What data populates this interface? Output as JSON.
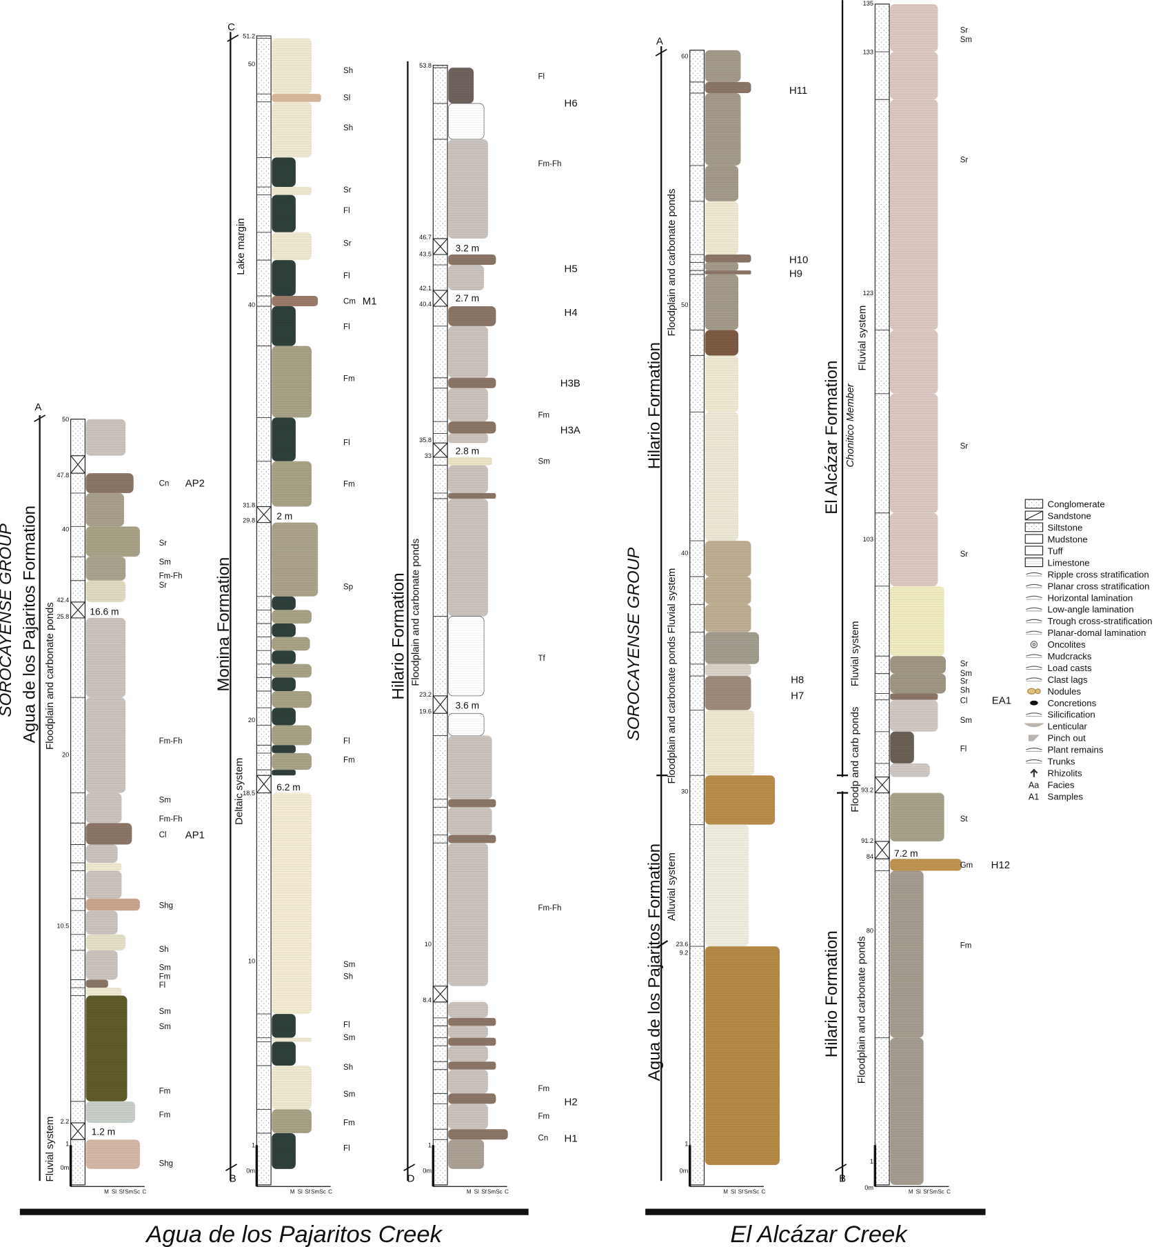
{
  "columns": [
    {
      "section_top": "A",
      "section_bottom": "",
      "facies": [
        "Cn",
        "Sr",
        "Sm",
        "Fm-Fh",
        "Sr",
        "Fm-Fh",
        "Sm",
        "Fm-Fh",
        "Cl",
        "Shg",
        "Sh",
        "Sm",
        "Fm",
        "Fl",
        "Sm",
        "Sm",
        "Fm",
        "Fm",
        "Shg"
      ],
      "samples": [
        "AP2",
        "AP1"
      ],
      "depths": [
        "50",
        "47.8",
        "40",
        "42.4",
        "25.8",
        "20",
        "10.5",
        "2.2",
        "1",
        "0m"
      ],
      "gaps": [
        "16.6 m",
        "1.2 m"
      ],
      "vertical_labels": [
        "SOROCAYENSE GROUP",
        "Agua de los Pajaritos Formation",
        "Floodplain and carbonate ponds",
        "Fluvial system"
      ]
    },
    {
      "section_top": "C",
      "section_bottom": "B",
      "facies": [
        "Sh",
        "Sl",
        "Sh",
        "Sr",
        "Fl",
        "Sr",
        "Fl",
        "Cm",
        "Fl",
        "Fm",
        "Fl",
        "Fm",
        "Sp",
        "Fl",
        "Fm",
        "Sm",
        "Sh",
        "Fl",
        "Sm",
        "Sh",
        "Sm",
        "Fm",
        "Fl"
      ],
      "samples": [
        "M1"
      ],
      "depths": [
        "51.2",
        "50",
        "40",
        "31.8",
        "29.8",
        "20",
        "18.5",
        "10",
        "1",
        "0m"
      ],
      "gaps": [
        "2 m",
        "6.2 m"
      ],
      "vertical_labels": [
        "Monina Formation",
        "Lake margin",
        "Deltaic system"
      ]
    },
    {
      "section_top": "",
      "section_bottom": "D",
      "facies": [
        "Fl",
        "Fm-Fh",
        "Fm",
        "Sm",
        "Tf",
        "Fm-Fh",
        "Fm",
        "Fm",
        "Cn"
      ],
      "samples": [
        "H6",
        "H5",
        "H4",
        "H3B",
        "H3A",
        "H2",
        "H1"
      ],
      "depths": [
        "53.8",
        "46.7",
        "43.5",
        "42.1",
        "40.4",
        "35.8",
        "33",
        "23.2",
        "19.6",
        "10",
        "8.4",
        "1",
        "0m"
      ],
      "gaps": [
        "3.2 m",
        "2.7 m",
        "2.8 m",
        "3.6 m"
      ],
      "vertical_labels": [
        "Hilario Formation",
        "Floodplain and carbonate ponds"
      ]
    },
    {
      "section_top": "A",
      "section_bottom": "",
      "facies": [],
      "samples": [
        "H11",
        "H10",
        "H9",
        "H8",
        "H7"
      ],
      "depths": [
        "60",
        "50",
        "40",
        "30",
        "23.6",
        "9.2",
        "1",
        "0m"
      ],
      "gaps": [],
      "vertical_labels": [
        "SOROCAYENSE GROUP",
        "Hilario Formation",
        "Floodplain and carbonate ponds",
        "Floodplain and carbonate ponds Fluvial system",
        "Agua de los Pajaritos Formation",
        "Alluvial system"
      ]
    },
    {
      "section_top": "",
      "section_bottom": "B",
      "facies": [
        "Sr",
        "Sm",
        "Sr",
        "Sr",
        "Sr",
        "Sr",
        "Sm",
        "Sr",
        "Sh",
        "Cl",
        "Sm",
        "Fl",
        "St",
        "Gm",
        "Fm"
      ],
      "samples": [
        "EA1",
        "H12"
      ],
      "depths": [
        "135",
        "133",
        "123",
        "103",
        "93.2",
        "91.2",
        "84",
        "80",
        "1",
        "0m"
      ],
      "gaps": [
        "7.2 m"
      ],
      "vertical_labels": [
        "El Alcázar Formation",
        "Chonitico Member",
        "Fluvial system",
        "Fluvial system",
        "Floodp and carb ponds",
        "Hilario Formation",
        "Floodplain and carbonate ponds"
      ]
    }
  ],
  "grain_axis": [
    "M",
    "Sl",
    "Sf",
    "Sm",
    "Sc",
    "C"
  ],
  "creeks": [
    "Agua de los Pajaritos Creek",
    "El Alcázar Creek"
  ],
  "legend": [
    {
      "label": "Conglomerate",
      "icon": "conglomerate-icon"
    },
    {
      "label": "Sandstone",
      "icon": "sandstone-icon"
    },
    {
      "label": "Siltstone",
      "icon": "siltstone-icon"
    },
    {
      "label": "Mudstone",
      "icon": "mudstone-icon"
    },
    {
      "label": "Tuff",
      "icon": "tuff-icon"
    },
    {
      "label": "Limestone",
      "icon": "limestone-icon"
    },
    {
      "label": "Ripple cross stratification",
      "icon": "ripple-icon"
    },
    {
      "label": "Planar cross stratification",
      "icon": "planar-cross-icon"
    },
    {
      "label": "Horizontal lamination",
      "icon": "horizontal-lamination-icon"
    },
    {
      "label": "Low-angle lamination",
      "icon": "low-angle-icon"
    },
    {
      "label": "Trough cross-stratification",
      "icon": "trough-icon"
    },
    {
      "label": "Planar-domal lamination",
      "icon": "planar-domal-icon"
    },
    {
      "label": "Oncolites",
      "icon": "oncolite-icon"
    },
    {
      "label": "Mudcracks",
      "icon": "mudcrack-icon"
    },
    {
      "label": "Load casts",
      "icon": "load-cast-icon"
    },
    {
      "label": "Clast lags",
      "icon": "clast-lag-icon"
    },
    {
      "label": "Nodules",
      "icon": "nodule-icon"
    },
    {
      "label": "Concretions",
      "icon": "concretion-icon"
    },
    {
      "label": "Silicification",
      "icon": "silicification-icon"
    },
    {
      "label": "Lenticular",
      "icon": "lenticular-icon"
    },
    {
      "label": "Pinch out",
      "icon": "pinch-out-icon"
    },
    {
      "label": "Plant remains",
      "icon": "plant-icon"
    },
    {
      "label": "Trunks",
      "icon": "trunk-icon"
    },
    {
      "label": "Rhizolits",
      "icon": "rhizolith-icon"
    },
    {
      "label": "Facies",
      "icon": "facies-key",
      "key": "Aa"
    },
    {
      "label": "Samples",
      "icon": "samples-key",
      "key": "A1"
    }
  ],
  "colors": {
    "mudstone": "#cbc3bd",
    "limestone": "#8b7566",
    "sandstone": "#a8a286",
    "cream": "#efe9d2",
    "lake_dark": "#2f3f3a",
    "conglomerate": "#b98d4a",
    "el_alcazar_pink": "#dcc7c1",
    "olive": "#5e5a2a"
  }
}
